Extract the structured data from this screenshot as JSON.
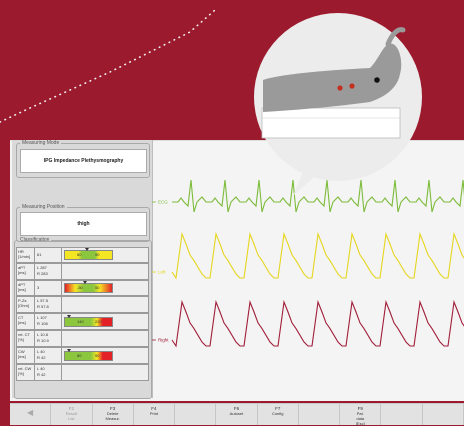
{
  "measuring_mode": {
    "legend": "Measuring Mode",
    "value": "IPG Impedance Plethysmography"
  },
  "measuring_position": {
    "legend": "Measuring Position",
    "value": "thigh"
  },
  "classification": {
    "legend": "Classification",
    "rows": [
      {
        "label": [
          "HR",
          "[1/min]"
        ],
        "values": [
          "61"
        ],
        "bar": {
          "kind": "yellow",
          "scale": [
            "60",
            "90"
          ]
        }
      },
      {
        "label": [
          "aPT",
          "[ms]"
        ],
        "values": [
          "L 287",
          "R 283"
        ]
      },
      {
        "label": [
          "dPT",
          "[ms]"
        ],
        "values": [
          "3"
        ],
        "bar": {
          "kind": "red",
          "scale": [
            "-50",
            "50"
          ]
        }
      },
      {
        "label": [
          "P-Zs",
          "[Ohm]"
        ],
        "values": [
          "L 57.5",
          "R 57.8"
        ]
      },
      {
        "label": [
          "CT",
          "[ms]"
        ],
        "values": [
          "L 107",
          "R 108"
        ],
        "bar": {
          "kind": "green",
          "scale": [
            "140",
            "220"
          ]
        }
      },
      {
        "label": [
          "rel. CT",
          "[%]"
        ],
        "values": [
          "L 10.8",
          "R 10.9"
        ]
      },
      {
        "label": [
          "CW",
          "[ms]"
        ],
        "values": [
          "L 40",
          "R 42"
        ],
        "bar": {
          "kind": "green",
          "scale": [
            "80",
            "90"
          ]
        }
      },
      {
        "label": [
          "rel. CW",
          "[%]"
        ],
        "values": [
          "L 40",
          "R 42"
        ]
      }
    ]
  },
  "traces": [
    {
      "label": "ECG",
      "color": "#7dbb3a"
    },
    {
      "label": "Left",
      "color": "#e6d61e"
    },
    {
      "label": "Right",
      "color": "#a11e3a"
    }
  ],
  "function_keys": [
    {
      "key": "",
      "label": "◀",
      "arrow": true
    },
    {
      "key": "F2",
      "label": "Result List",
      "dim": true
    },
    {
      "key": "F3",
      "label": "Delete Measur."
    },
    {
      "key": "F4",
      "label": "Print"
    },
    {
      "key": "",
      "label": ""
    },
    {
      "key": "F6",
      "label": "Autoset"
    },
    {
      "key": "F7",
      "label": "Config"
    },
    {
      "key": "",
      "label": ""
    },
    {
      "key": "F9",
      "label": "Pat. data [Esc]"
    },
    {
      "key": "",
      "label": ""
    },
    {
      "key": "",
      "label": ""
    }
  ]
}
